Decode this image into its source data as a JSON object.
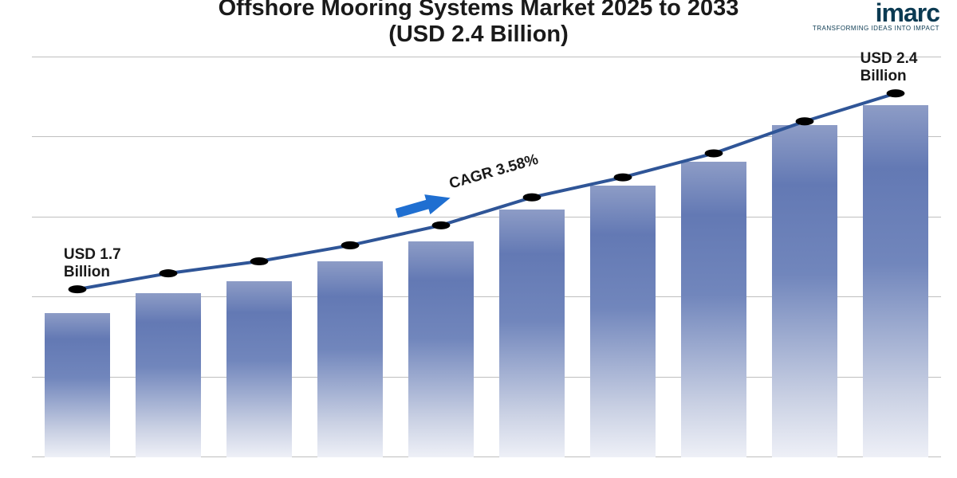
{
  "title": {
    "line1": "Offshore Mooring Systems Market 2025 to 2033",
    "line2": "(USD 2.4 Billion)",
    "fontsize": 29,
    "color": "#1a1a1a"
  },
  "logo": {
    "name": "imarc",
    "tagline": "TRANSFORMING IDEAS INTO IMPACT",
    "color": "#0b3a52"
  },
  "chart": {
    "type": "bar+line",
    "background_color": "#ffffff",
    "grid_color": "#bfbfbf",
    "ylim": [
      0,
      100
    ],
    "grid_positions_pct": [
      0,
      20,
      40,
      60,
      80,
      100
    ],
    "bar_values_pct": [
      36,
      41,
      44,
      49,
      54,
      62,
      68,
      74,
      83,
      88
    ],
    "line_values_pct": [
      42,
      46,
      49,
      53,
      58,
      65,
      70,
      76,
      84,
      91
    ],
    "bar_gradient": [
      "#8d9cc6",
      "#6379b4",
      "#c9d0e3",
      "#eef0f7"
    ],
    "line_color": "#2f5597",
    "line_width": 2,
    "marker_color": "#000000",
    "marker_radius": 5,
    "start_label": "USD 1.7 Billion",
    "end_label": "USD 2.4 Billion",
    "cagr_label": "CAGR 3.58%",
    "label_fontsize": 19,
    "arrow_color": "#1f6fd1",
    "cagr_rotation_deg": -16
  }
}
